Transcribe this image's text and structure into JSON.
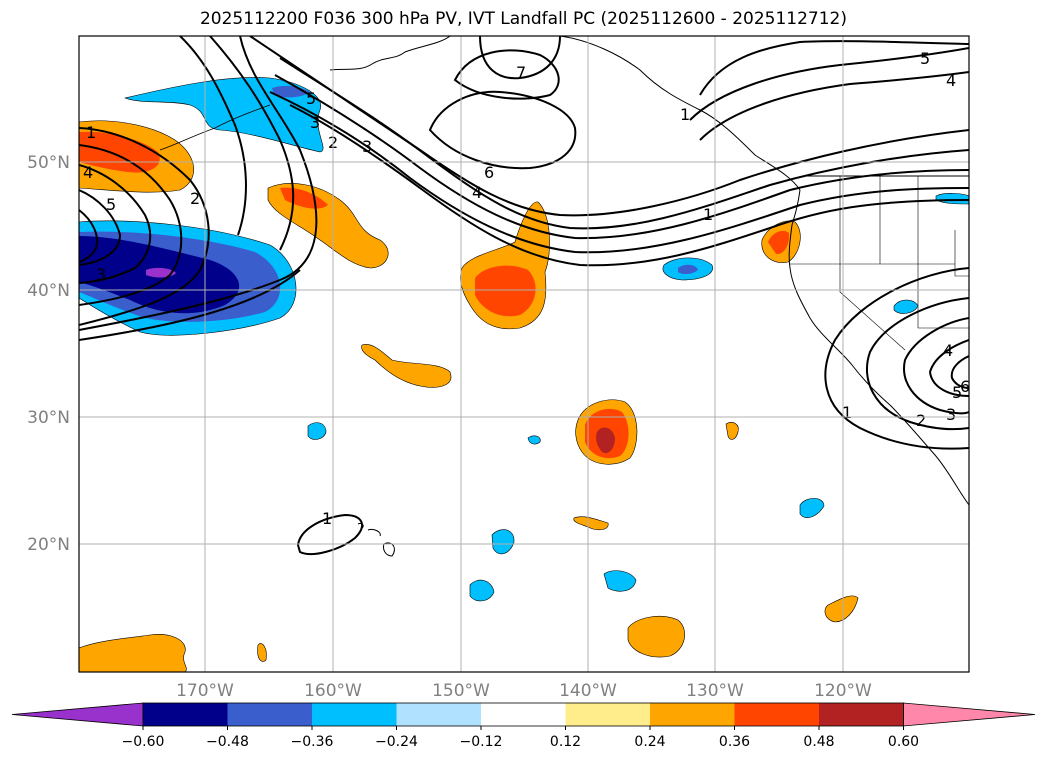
{
  "title": "2025112200 F036 300 hPa PV, IVT Landfall PC (2025112600 - 2025112712)",
  "map": {
    "lat_labels": [
      "50°N",
      "40°N",
      "30°N",
      "20°N"
    ],
    "lon_labels": [
      "170°W",
      "160°W",
      "150°W",
      "140°W",
      "130°W",
      "120°W"
    ],
    "contour_labels": [
      "1",
      "4",
      "5",
      "2",
      "3",
      "3",
      "2",
      "5",
      "3",
      "6",
      "4",
      "7",
      "1",
      "5",
      "4",
      "1",
      "4",
      "5",
      "6",
      "2",
      "3",
      "1",
      "1"
    ]
  },
  "colorbar": {
    "ticks": [
      "−0.60",
      "−0.48",
      "−0.36",
      "−0.24",
      "−0.12",
      "0.12",
      "0.24",
      "0.36",
      "0.48",
      "0.60"
    ],
    "colors": [
      "#9932CC",
      "#00008B",
      "#3A5FCD",
      "#00BFFF",
      "#B0E2FF",
      "#FFFFFF",
      "#FFEC8B",
      "#FFA500",
      "#FF4500",
      "#B22222",
      "#FF88AA"
    ]
  }
}
